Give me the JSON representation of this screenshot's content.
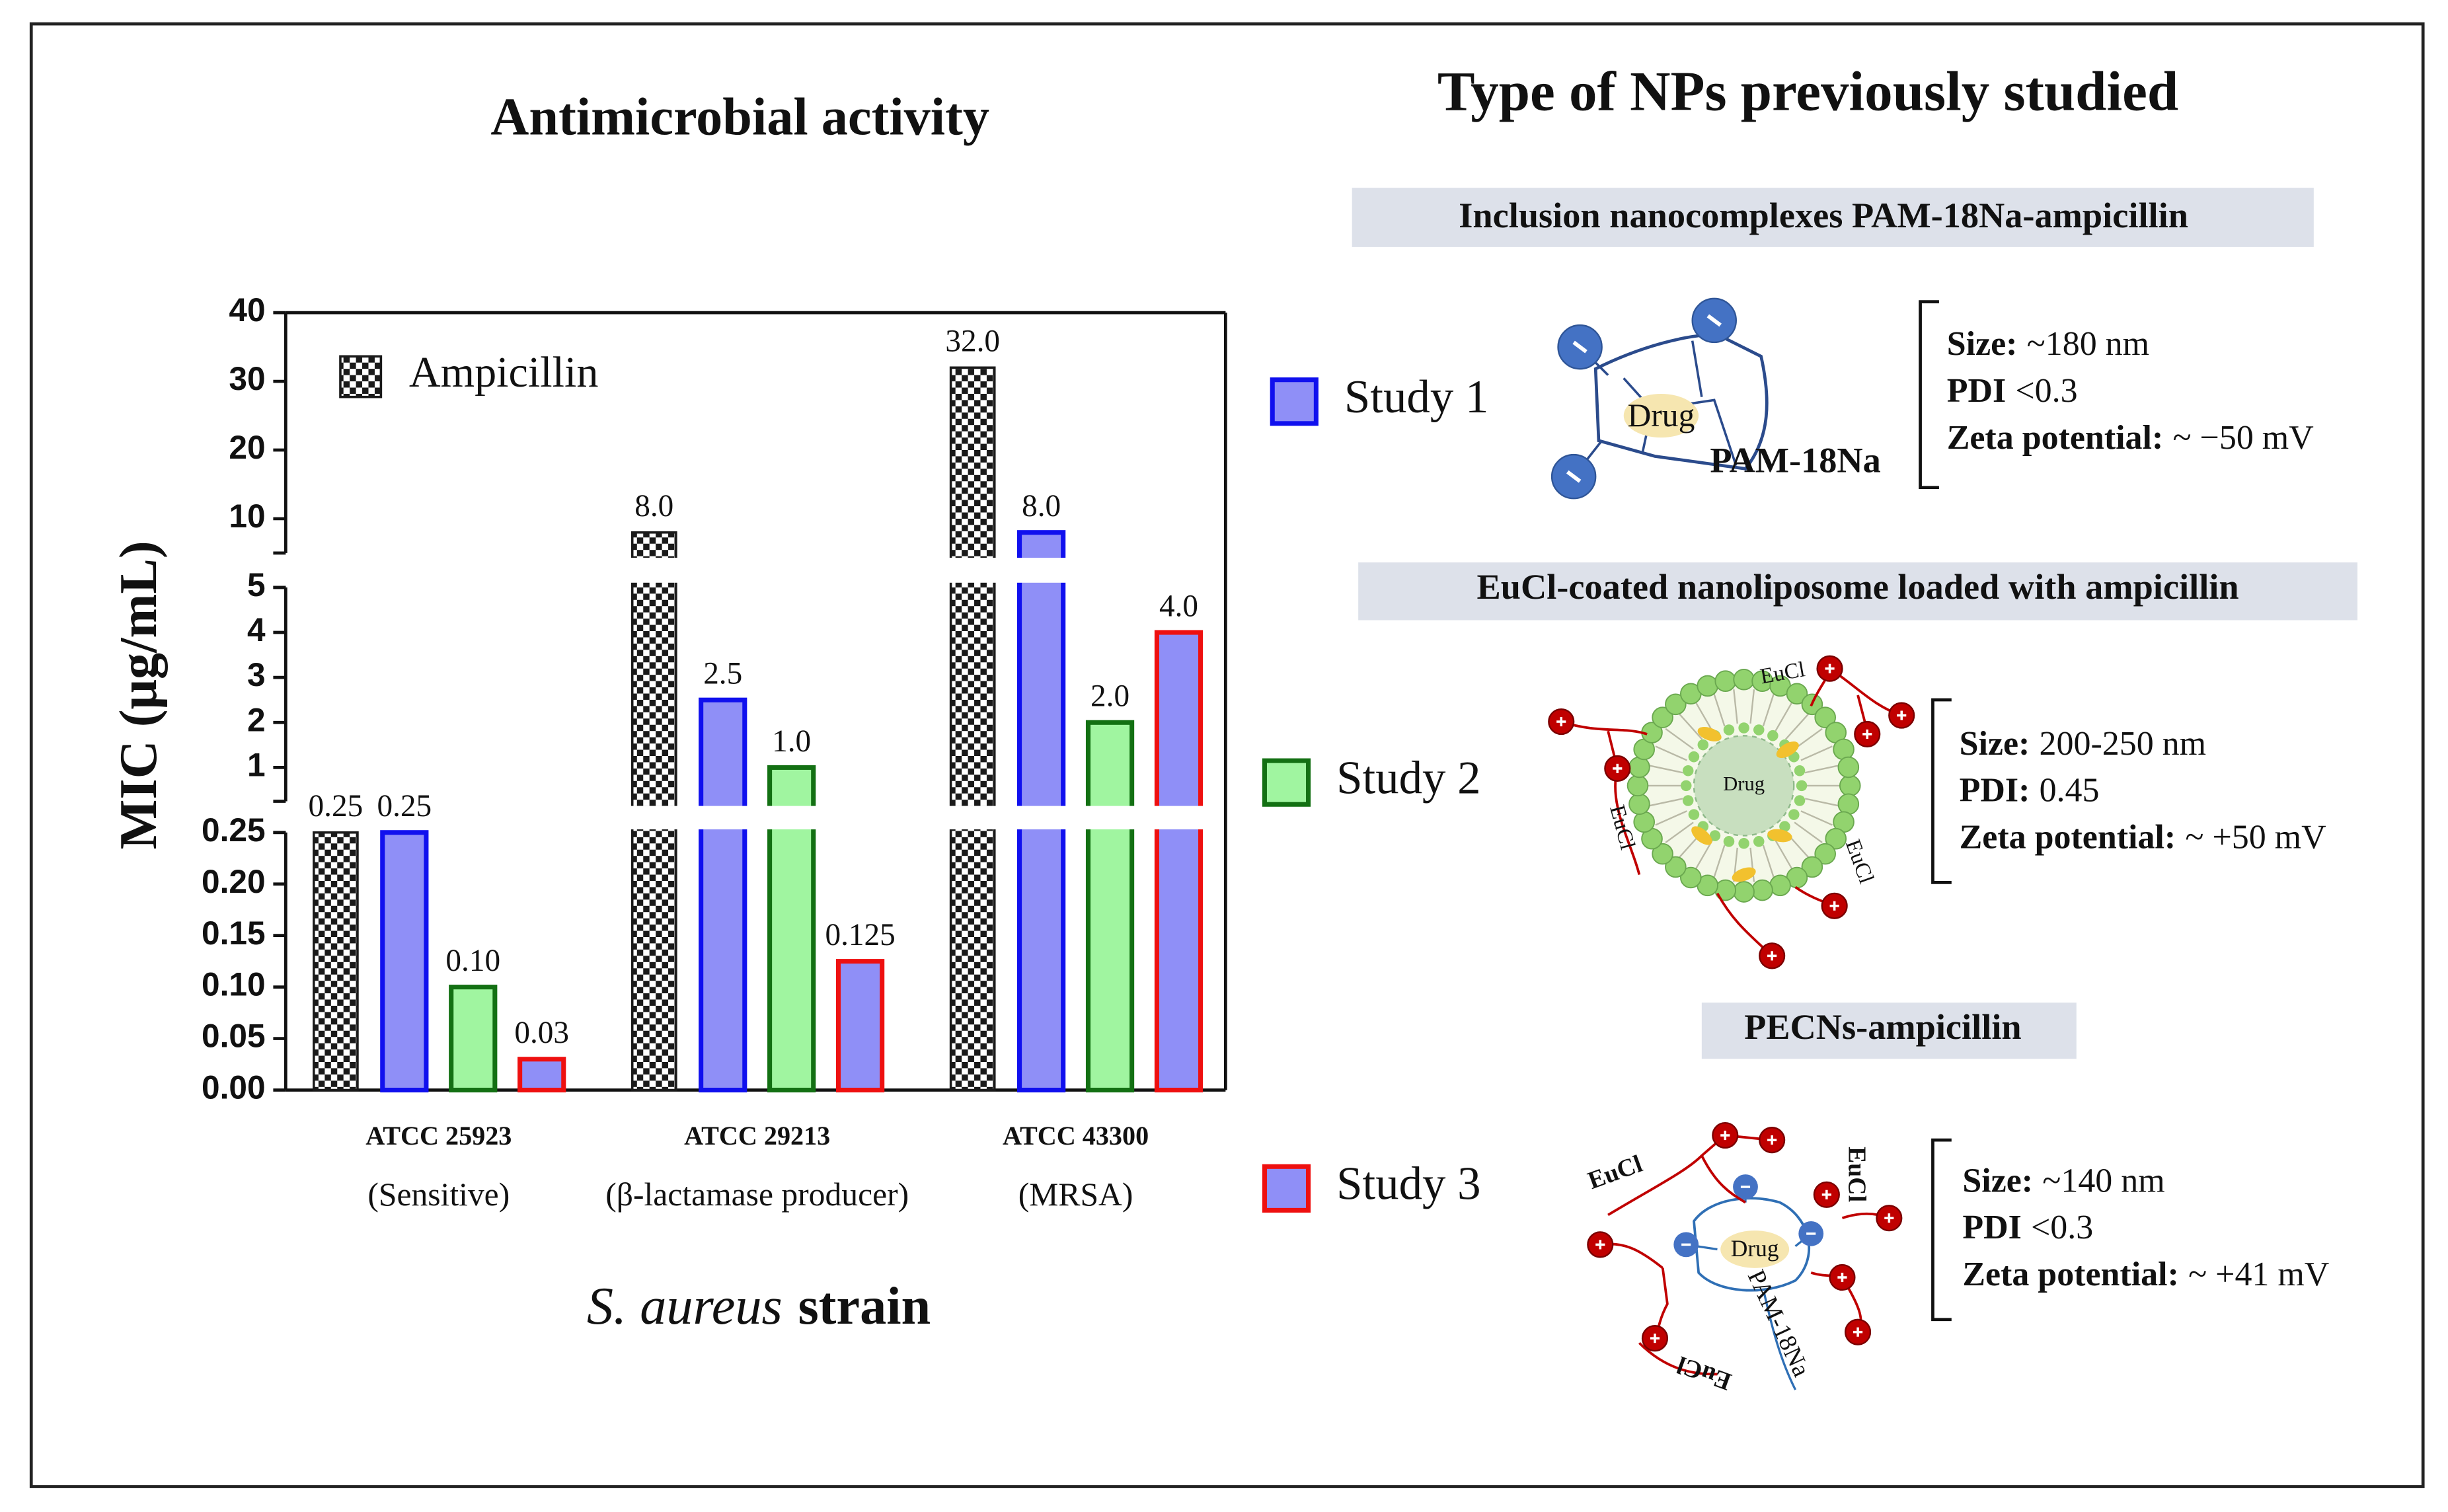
{
  "chart_data": {
    "type": "bar",
    "title": "Antimicrobial activity",
    "ylabel": "MIC (μg/mL)",
    "xlabel": [
      "S. aureus",
      "strain"
    ],
    "categories": [
      "ATCC 25923",
      "ATCC 29213",
      "ATCC 43300"
    ],
    "category_notes": [
      "(Sensitive)",
      "(β-lactamase producer)",
      "(MRSA)"
    ],
    "y_segments": [
      {
        "ylim": [
          0,
          0.25
        ],
        "yticks": [
          {
            "value": 0,
            "label": "0.00"
          },
          0.05,
          {
            "value": 0.1,
            "label": "0.10"
          },
          0.15,
          {
            "value": 0.2,
            "label": "0.20"
          },
          0.25
        ]
      },
      {
        "ylim": [
          0.25,
          5
        ],
        "yticks": [
          1,
          2,
          3,
          4,
          5
        ]
      },
      {
        "ylim": [
          5,
          40
        ],
        "yticks": [
          10,
          20,
          30,
          40
        ]
      }
    ],
    "series": [
      {
        "name": "Ampicillin",
        "color": "#1a1a1a",
        "pattern": "checker",
        "values": [
          0.25,
          8,
          32
        ],
        "value_labels": [
          "0.25",
          "8.0",
          "32.0"
        ]
      },
      {
        "name": "Study 1",
        "color": "#8f8ff7",
        "edge": "#1010ee",
        "values": [
          0.25,
          2.5,
          8
        ],
        "value_labels": [
          "0.25",
          "2.5",
          "8.0"
        ]
      },
      {
        "name": "Study 2",
        "color": "#a0f5a0",
        "edge": "#137013",
        "values": [
          0.1,
          1,
          2
        ],
        "value_labels": [
          "0.10",
          "1.0",
          "2.0"
        ]
      },
      {
        "name": "Study 3",
        "color": "#8f8ff7",
        "edge": "#ee1010",
        "values": [
          0.03,
          0.125,
          4
        ],
        "value_labels": [
          "0.03",
          "0.125",
          "4.0"
        ]
      }
    ]
  },
  "panel": {
    "title": "Type of NPs previously studied",
    "studies": [
      {
        "heading": "Inclusion nanocomplexes PAM-18Na-ampicillin",
        "labels": [
          "Drug",
          "PAM-18Na"
        ],
        "properties": [
          {
            "name": "Size:",
            "value": "~180 nm"
          },
          {
            "name": "PDI",
            "value": "<0.3"
          },
          {
            "name": "Zeta potential:",
            "value": "~ −50 mV"
          }
        ]
      },
      {
        "heading": "EuCl-coated nanoliposome loaded with ampicillin",
        "labels": [
          "Drug",
          "EuCl",
          "EuCl",
          "EuCl"
        ],
        "properties": [
          {
            "name": "Size:",
            "value": "200-250 nm"
          },
          {
            "name": "PDI:",
            "value": "0.45"
          },
          {
            "name": "Zeta potential:",
            "value": "~ +50 mV"
          }
        ]
      },
      {
        "heading": "PECNs-ampicillin",
        "labels": [
          "Drug",
          "PAM-18Na",
          "EuCl",
          "EuCl",
          "EuCl"
        ],
        "properties": [
          {
            "name": "Size:",
            "value": "~140 nm"
          },
          {
            "name": "PDI",
            "value": "<0.3"
          },
          {
            "name": "Zeta potential:",
            "value": "~ +41 mV"
          }
        ]
      }
    ]
  }
}
